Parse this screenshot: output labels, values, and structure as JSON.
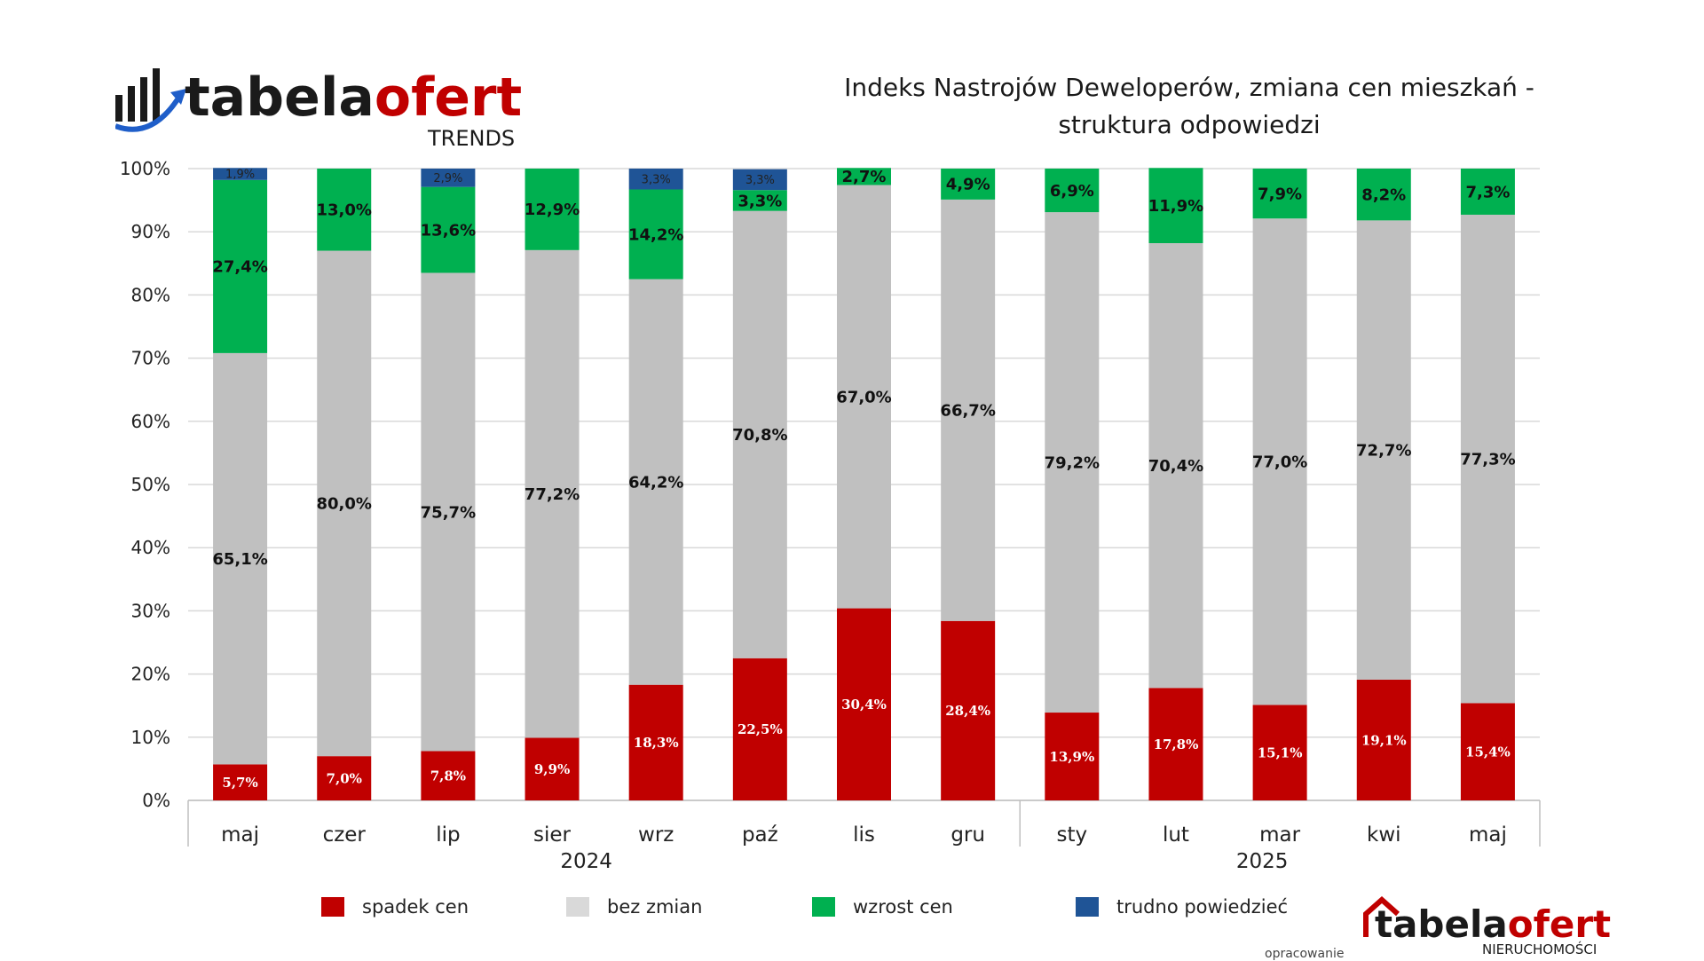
{
  "header": {
    "logo_text_main": "tabela",
    "logo_text_accent": "ofert",
    "logo_subtext": "TRENDS",
    "title_line1": "Indeks Nastrojów Deweloperów, zmiana cen mieszkań -",
    "title_line2": "struktura odpowiedzi"
  },
  "footer": {
    "logo_text_main": "tabela",
    "logo_text_accent": "ofert",
    "logo_subtext": "NIERUCHOMOŚCI",
    "credit": "opracowanie"
  },
  "colors": {
    "spadek": "#c00000",
    "bez_zmian": "#c0c0c0",
    "wzrost": "#00b050",
    "trudno": "#1f5496",
    "brand_red": "#c00000",
    "brand_dark": "#1a1a1a"
  },
  "chart_data": {
    "type": "bar",
    "stacked": true,
    "title": "Indeks Nastrojów Deweloperów, zmiana cen mieszkań - struktura odpowiedzi",
    "categories": [
      "maj",
      "czer",
      "lip",
      "sier",
      "wrz",
      "paź",
      "lis",
      "gru",
      "sty",
      "lut",
      "mar",
      "kwi",
      "maj"
    ],
    "year_groups": [
      {
        "label": "2024",
        "start": 0,
        "end": 7
      },
      {
        "label": "2025",
        "start": 8,
        "end": 12
      }
    ],
    "yticks": [
      "0%",
      "10%",
      "20%",
      "30%",
      "40%",
      "50%",
      "60%",
      "70%",
      "80%",
      "90%",
      "100%"
    ],
    "ylim": [
      0,
      100
    ],
    "series": [
      {
        "name": "spadek cen",
        "key": "spadek",
        "values": [
          5.7,
          7.0,
          7.8,
          9.9,
          18.3,
          22.5,
          30.4,
          28.4,
          13.9,
          17.8,
          15.1,
          19.1,
          15.4
        ],
        "labels": [
          "5,7%",
          "7,0%",
          "7,8%",
          "9,9%",
          "18,3%",
          "22,5%",
          "30,4%",
          "28,4%",
          "13,9%",
          "17,8%",
          "15,1%",
          "19,1%",
          "15,4%"
        ]
      },
      {
        "name": "bez zmian",
        "key": "bez_zmian",
        "values": [
          65.1,
          80.0,
          75.7,
          77.2,
          64.2,
          70.8,
          67.0,
          66.7,
          79.2,
          70.4,
          77.0,
          72.7,
          77.3
        ],
        "labels": [
          "65,1%",
          "80,0%",
          "75,7%",
          "77,2%",
          "64,2%",
          "70,8%",
          "67,0%",
          "66,7%",
          "79,2%",
          "70,4%",
          "77,0%",
          "72,7%",
          "77,3%"
        ]
      },
      {
        "name": "wzrost cen",
        "key": "wzrost",
        "values": [
          27.4,
          13.0,
          13.6,
          12.9,
          14.2,
          3.3,
          2.7,
          4.9,
          6.9,
          11.9,
          7.9,
          8.2,
          7.3
        ],
        "labels": [
          "27,4%",
          "13,0%",
          "13,6%",
          "12,9%",
          "14,2%",
          "3,3%",
          "2,7%",
          "4,9%",
          "6,9%",
          "11,9%",
          "7,9%",
          "8,2%",
          "7,3%"
        ]
      },
      {
        "name": "trudno powiedzieć",
        "key": "trudno",
        "values": [
          1.9,
          0,
          2.9,
          0,
          3.3,
          3.3,
          0,
          0,
          0,
          0,
          0,
          0,
          0
        ],
        "labels": [
          "1,9%",
          "",
          "2,9%",
          "",
          "3,3%",
          "3,3%",
          "",
          "",
          "",
          "",
          "",
          "",
          ""
        ]
      }
    ],
    "legend": [
      "spadek cen",
      "bez zmian",
      "wzrost cen",
      "trudno powiedzieć"
    ],
    "legend_position": "bottom",
    "grid": true
  }
}
